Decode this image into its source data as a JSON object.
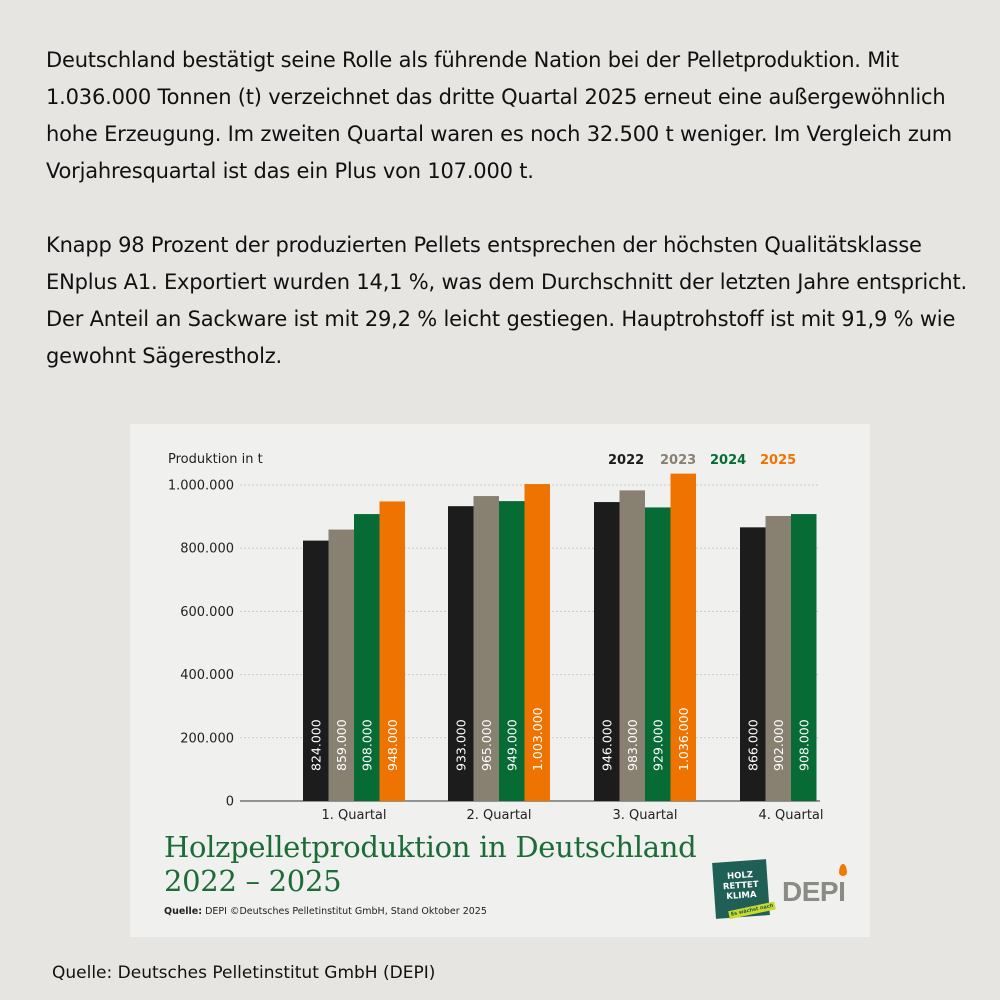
{
  "intro": {
    "paragraph1": "Deutschland bestätigt seine Rolle als führende Nation bei der Pelletproduktion. Mit 1.036.000 Tonnen (t) verzeichnet das dritte Quartal 2025 erneut eine außergewöhnlich hohe Erzeugung. Im zweiten Quartal waren es noch 32.500 t weniger. Im Vergleich zum Vorjahresquartal ist das ein Plus von 107.000 t.",
    "paragraph2": "Knapp 98 Prozent der produzierten Pellets entsprechen der höchsten Qualitätsklasse ENplus A1. Exportiert wurden 14,1 %, was dem Durchschnitt der letzten Jahre entspricht. Der Anteil an Sackware ist mit 29,2 % leicht gestiegen. Hauptrohstoff ist mit 91,9 % wie gewohnt Sägerestholz."
  },
  "chart_data": {
    "type": "bar",
    "title": "Holzpelletproduktion in Deutschland",
    "subtitle": "2022 – 2025",
    "ylabel": "Produktion in t",
    "xlabel": "",
    "ylim": [
      0,
      1000000
    ],
    "yticks": [
      0,
      200000,
      400000,
      600000,
      800000,
      1000000
    ],
    "ytick_labels": [
      "0",
      "200.000",
      "400.000",
      "600.000",
      "800.000",
      "1.000.000"
    ],
    "grid": true,
    "legend_position": "top-right",
    "categories": [
      "1. Quartal",
      "2. Quartal",
      "3. Quartal",
      "4. Quartal"
    ],
    "series": [
      {
        "name": "2022",
        "color": "#1c1c1c",
        "values": [
          824000,
          933000,
          946000,
          866000
        ],
        "labels": [
          "824.000",
          "933.000",
          "946.000",
          "866.000"
        ]
      },
      {
        "name": "2023",
        "color": "#888070",
        "values": [
          859000,
          965000,
          983000,
          902000
        ],
        "labels": [
          "859.000",
          "965.000",
          "983.000",
          "902.000"
        ]
      },
      {
        "name": "2024",
        "color": "#066b35",
        "values": [
          908000,
          949000,
          929000,
          908000
        ],
        "labels": [
          "908.000",
          "949.000",
          "929.000",
          "908.000"
        ]
      },
      {
        "name": "2025",
        "color": "#ef7300",
        "values": [
          948000,
          1003000,
          1036000,
          null
        ],
        "labels": [
          "948.000",
          "1.003.000",
          "1.036.000",
          ""
        ]
      }
    ]
  },
  "chart_source": {
    "label": "Quelle:",
    "text": "DEPI ©Deutsches Pelletinstitut GmbH, Stand Oktober 2025"
  },
  "logos": {
    "holz_line1": "HOLZ",
    "holz_line2": "RETTET",
    "holz_line3": "KLIMA",
    "holz_tag": "Es wächst nach",
    "depi": "DEPI"
  },
  "footer": {
    "source": "Quelle: Deutsches Pelletinstitut GmbH (DEPI)"
  }
}
